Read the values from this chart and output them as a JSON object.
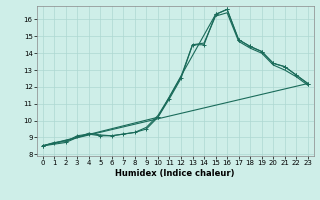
{
  "xlabel": "Humidex (Indice chaleur)",
  "bg_color": "#ceeee8",
  "grid_color": "#aed8d2",
  "line_color": "#1a6b5a",
  "xlim": [
    -0.5,
    23.5
  ],
  "ylim": [
    7.9,
    16.8
  ],
  "xticks": [
    0,
    1,
    2,
    3,
    4,
    5,
    6,
    7,
    8,
    9,
    10,
    11,
    12,
    13,
    14,
    15,
    16,
    17,
    18,
    19,
    20,
    21,
    22,
    23
  ],
  "yticks": [
    8,
    9,
    10,
    11,
    12,
    13,
    14,
    15,
    16
  ],
  "line1_x": [
    0,
    1,
    2,
    3,
    4,
    5,
    6,
    7,
    8,
    9,
    10,
    11,
    12,
    13,
    14,
    15,
    16,
    17,
    18,
    19,
    20,
    21,
    22,
    23
  ],
  "line1_y": [
    8.5,
    8.7,
    8.75,
    9.1,
    9.2,
    9.1,
    9.1,
    9.2,
    9.3,
    9.5,
    10.2,
    11.3,
    12.5,
    14.5,
    14.5,
    16.3,
    16.6,
    14.8,
    14.4,
    14.1,
    13.4,
    13.2,
    12.7,
    12.2
  ],
  "line2_x": [
    0,
    1,
    2,
    3,
    4,
    5,
    6,
    7,
    8,
    9,
    10,
    11,
    12,
    13,
    14,
    15,
    16,
    17,
    18,
    19,
    20,
    21,
    22,
    23
  ],
  "line2_y": [
    8.5,
    8.6,
    8.7,
    9.0,
    9.25,
    9.15,
    9.1,
    9.2,
    9.3,
    9.6,
    10.3,
    11.4,
    12.6,
    14.5,
    14.6,
    16.2,
    16.4,
    14.7,
    14.3,
    14.0,
    13.3,
    13.0,
    12.6,
    12.1
  ],
  "line3_x": [
    0,
    10,
    15,
    16,
    17,
    18,
    19,
    20,
    21,
    22,
    23
  ],
  "line3_y": [
    8.5,
    10.2,
    16.3,
    16.6,
    14.8,
    14.4,
    14.1,
    13.4,
    13.2,
    12.7,
    12.2
  ],
  "line4_x": [
    0,
    23
  ],
  "line4_y": [
    8.5,
    12.2
  ]
}
